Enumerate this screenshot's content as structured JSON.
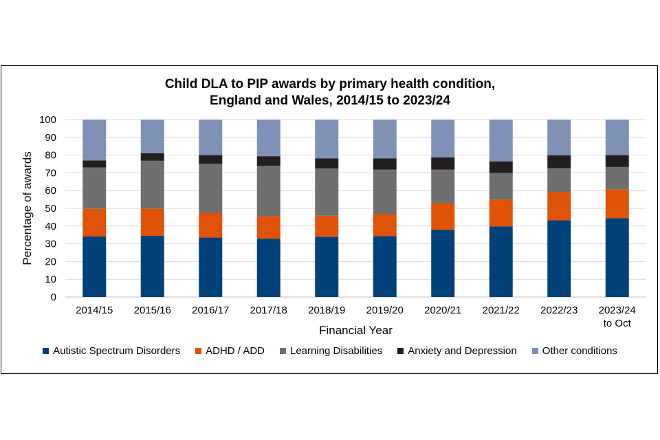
{
  "chart_data": {
    "type": "bar",
    "stacked": true,
    "title": [
      "Child DLA to PIP awards by primary health condition,",
      "England and Wales, 2014/15 to 2023/24"
    ],
    "xlabel": "Financial Year",
    "ylabel": "Percentage of awards",
    "ylim": [
      0,
      100
    ],
    "yticks": [
      0,
      10,
      20,
      30,
      40,
      50,
      60,
      70,
      80,
      90,
      100
    ],
    "grid": true,
    "legend_position": "bottom",
    "categories": [
      "2014/15",
      "2015/16",
      "2016/17",
      "2017/18",
      "2018/19",
      "2019/20",
      "2020/21",
      "2021/22",
      "2022/23",
      "2023/24 to Oct"
    ],
    "series": [
      {
        "name": "Autistic Spectrum Disorders",
        "color": "#00417a",
        "values": [
          34.2,
          34.5,
          33.5,
          32.9,
          34.0,
          34.4,
          37.9,
          39.8,
          43.2,
          44.4
        ]
      },
      {
        "name": "ADHD / ADD",
        "color": "#e05206",
        "values": [
          15.5,
          15.2,
          13.8,
          12.6,
          11.8,
          12.3,
          15.0,
          15.1,
          15.9,
          16.2
        ]
      },
      {
        "name": "Learning Disabilities",
        "color": "#6f6f6f",
        "values": [
          23.3,
          27.1,
          27.8,
          28.4,
          26.6,
          25.2,
          19.0,
          15.0,
          13.5,
          12.7
        ]
      },
      {
        "name": "Anxiety and Depression",
        "color": "#231f20",
        "values": [
          4.0,
          4.3,
          4.9,
          5.5,
          5.7,
          6.2,
          6.8,
          6.6,
          7.3,
          6.7
        ]
      },
      {
        "name": "Other conditions",
        "color": "#7f91b7",
        "values": [
          23.0,
          18.9,
          20.0,
          20.6,
          21.9,
          21.9,
          21.3,
          23.5,
          20.1,
          20.0
        ]
      }
    ]
  }
}
